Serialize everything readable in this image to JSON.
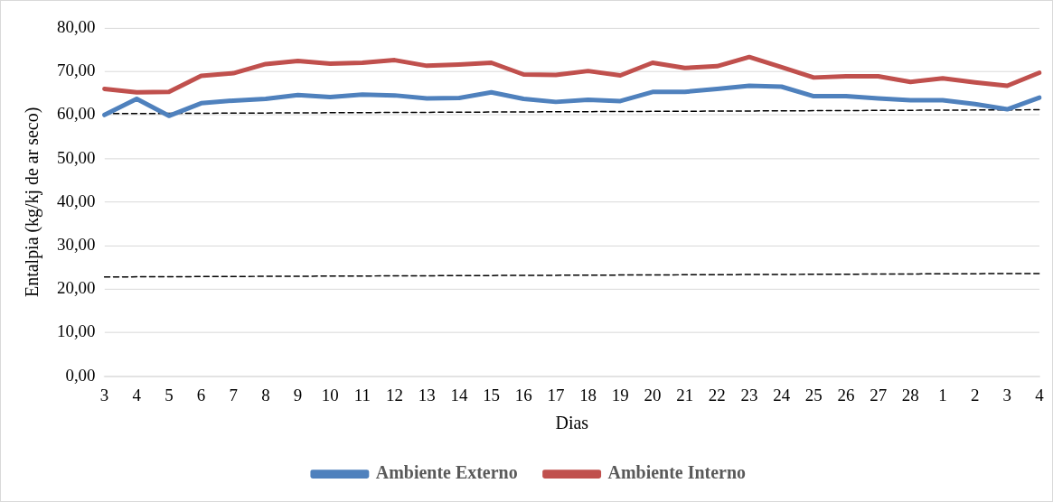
{
  "chart_data": {
    "type": "line",
    "xlabel": "Dias",
    "ylabel": "Entalpia (kg/kj de ar seco)",
    "categories": [
      "3",
      "4",
      "5",
      "6",
      "7",
      "8",
      "9",
      "10",
      "11",
      "12",
      "13",
      "14",
      "15",
      "16",
      "17",
      "18",
      "19",
      "20",
      "21",
      "22",
      "23",
      "24",
      "25",
      "26",
      "27",
      "28",
      "1",
      "2",
      "3",
      "4"
    ],
    "ylim": [
      0,
      80
    ],
    "yticks": [
      {
        "value": 0,
        "label": "0,00"
      },
      {
        "value": 10,
        "label": "10,00"
      },
      {
        "value": 20,
        "label": "20,00"
      },
      {
        "value": 30,
        "label": "30,00"
      },
      {
        "value": 40,
        "label": "40,00"
      },
      {
        "value": 50,
        "label": "50,00"
      },
      {
        "value": 60,
        "label": "60,00"
      },
      {
        "value": 70,
        "label": "70,00"
      },
      {
        "value": 80,
        "label": "80,00"
      }
    ],
    "grid": "y",
    "legend": "bottom",
    "marker": "none",
    "line_style": "solid",
    "series": [
      {
        "name": "Ambiente Externo",
        "color": "#4f81bd",
        "values": [
          60,
          63.7,
          59.8,
          62.7,
          63.3,
          63.7,
          64.6,
          64.1,
          64.7,
          64.5,
          63.8,
          63.9,
          65.2,
          63.7,
          63,
          63.5,
          63.2,
          65.3,
          65.3,
          66,
          66.7,
          66.5,
          64.3,
          64.3,
          63.8,
          63.4,
          63.4,
          62.5,
          61.3,
          64
        ]
      },
      {
        "name": "Ambiente Interno",
        "color": "#c0504d",
        "values": [
          66,
          65.2,
          65.3,
          69,
          69.6,
          71.7,
          72.4,
          71.8,
          72,
          72.6,
          71.3,
          71.6,
          72,
          69.3,
          69.2,
          70.1,
          69.1,
          72,
          70.8,
          71.2,
          73.3,
          71,
          68.6,
          68.9,
          68.9,
          67.6,
          68.4,
          67.5,
          66.7,
          69.7
        ]
      },
      {
        "type": "line",
        "color": "#000000",
        "line_style": "dashed",
        "values": [
          60.3,
          null,
          null,
          null,
          null,
          null,
          null,
          null,
          null,
          null,
          null,
          null,
          null,
          null,
          null,
          null,
          null,
          null,
          null,
          null,
          null,
          null,
          null,
          null,
          null,
          null,
          null,
          null,
          null,
          61.2
        ]
      },
      {
        "type": "line",
        "color": "#000000",
        "line_style": "dashed",
        "values": [
          22.8,
          null,
          null,
          null,
          null,
          null,
          null,
          null,
          null,
          null,
          null,
          null,
          null,
          null,
          null,
          null,
          null,
          null,
          null,
          null,
          null,
          null,
          null,
          null,
          null,
          null,
          null,
          null,
          null,
          23.6
        ]
      }
    ]
  }
}
